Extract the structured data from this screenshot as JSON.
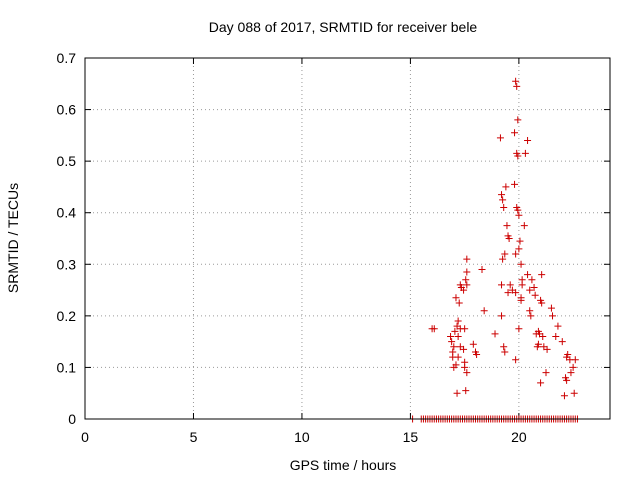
{
  "chart_data": {
    "type": "scatter",
    "title": "Day 088 of 2017, SRMTID for receiver bele",
    "xlabel": "GPS time / hours",
    "ylabel": "SRMTID / TECUs",
    "xlim": [
      0,
      24.2
    ],
    "ylim": [
      0,
      0.7
    ],
    "xticks": [
      0,
      5,
      10,
      15,
      20
    ],
    "xtick_labels": [
      "0",
      "5",
      "10",
      "15",
      "20"
    ],
    "yticks": [
      0,
      0.1,
      0.2,
      0.3,
      0.4,
      0.5,
      0.6,
      0.7
    ],
    "ytick_labels": [
      "0",
      "0.1",
      "0.2",
      "0.3",
      "0.4",
      "0.5",
      "0.6",
      "0.7"
    ],
    "grid": true,
    "marker": "+",
    "color": "#cc0000",
    "points": [
      [
        16.0,
        0.175
      ],
      [
        16.1,
        0.175
      ],
      [
        16.85,
        0.16
      ],
      [
        16.9,
        0.15
      ],
      [
        16.95,
        0.13
      ],
      [
        16.95,
        0.12
      ],
      [
        17.0,
        0.14
      ],
      [
        17.0,
        0.1
      ],
      [
        17.05,
        0.17
      ],
      [
        17.1,
        0.235
      ],
      [
        17.1,
        0.105
      ],
      [
        17.15,
        0.05
      ],
      [
        17.15,
        0.18
      ],
      [
        17.2,
        0.19
      ],
      [
        17.2,
        0.16
      ],
      [
        17.2,
        0.12
      ],
      [
        17.25,
        0.225
      ],
      [
        17.3,
        0.26
      ],
      [
        17.3,
        0.175
      ],
      [
        17.3,
        0.14
      ],
      [
        17.35,
        0.255
      ],
      [
        17.45,
        0.25
      ],
      [
        17.45,
        0.135
      ],
      [
        17.5,
        0.175
      ],
      [
        17.5,
        0.11
      ],
      [
        17.5,
        0.1
      ],
      [
        17.55,
        0.27
      ],
      [
        17.6,
        0.285
      ],
      [
        17.6,
        0.26
      ],
      [
        17.6,
        0.31
      ],
      [
        17.6,
        0.09
      ],
      [
        17.55,
        0.055
      ],
      [
        17.9,
        0.145
      ],
      [
        18.0,
        0.13
      ],
      [
        18.05,
        0.125
      ],
      [
        18.3,
        0.29
      ],
      [
        18.4,
        0.21
      ],
      [
        18.9,
        0.165
      ],
      [
        19.15,
        0.545
      ],
      [
        19.2,
        0.435
      ],
      [
        19.25,
        0.425
      ],
      [
        19.3,
        0.41
      ],
      [
        19.2,
        0.26
      ],
      [
        19.25,
        0.31
      ],
      [
        19.2,
        0.2
      ],
      [
        19.3,
        0.14
      ],
      [
        19.35,
        0.13
      ],
      [
        19.4,
        0.45
      ],
      [
        19.35,
        0.32
      ],
      [
        19.45,
        0.375
      ],
      [
        19.5,
        0.355
      ],
      [
        19.55,
        0.35
      ],
      [
        19.6,
        0.26
      ],
      [
        19.5,
        0.245
      ],
      [
        19.7,
        0.25
      ],
      [
        19.8,
        0.555
      ],
      [
        19.8,
        0.455
      ],
      [
        19.85,
        0.655
      ],
      [
        19.9,
        0.645
      ],
      [
        19.9,
        0.515
      ],
      [
        19.95,
        0.51
      ],
      [
        19.95,
        0.58
      ],
      [
        19.9,
        0.41
      ],
      [
        19.95,
        0.405
      ],
      [
        20.0,
        0.395
      ],
      [
        19.85,
        0.32
      ],
      [
        20.0,
        0.33
      ],
      [
        20.05,
        0.345
      ],
      [
        20.1,
        0.3
      ],
      [
        19.85,
        0.245
      ],
      [
        20.1,
        0.235
      ],
      [
        20.0,
        0.175
      ],
      [
        20.1,
        0.23
      ],
      [
        20.15,
        0.26
      ],
      [
        20.15,
        0.27
      ],
      [
        19.85,
        0.115
      ],
      [
        20.3,
        0.515
      ],
      [
        20.25,
        0.375
      ],
      [
        20.4,
        0.54
      ],
      [
        20.4,
        0.28
      ],
      [
        20.5,
        0.25
      ],
      [
        20.5,
        0.21
      ],
      [
        20.55,
        0.2
      ],
      [
        20.6,
        0.27
      ],
      [
        20.7,
        0.255
      ],
      [
        20.75,
        0.24
      ],
      [
        20.8,
        0.165
      ],
      [
        20.85,
        0.14
      ],
      [
        20.9,
        0.17
      ],
      [
        20.9,
        0.145
      ],
      [
        20.95,
        0.165
      ],
      [
        21.0,
        0.23
      ],
      [
        21.0,
        0.07
      ],
      [
        21.05,
        0.28
      ],
      [
        21.05,
        0.225
      ],
      [
        21.1,
        0.16
      ],
      [
        21.15,
        0.14
      ],
      [
        21.25,
        0.09
      ],
      [
        21.3,
        0.135
      ],
      [
        21.5,
        0.215
      ],
      [
        21.55,
        0.2
      ],
      [
        21.8,
        0.18
      ],
      [
        21.7,
        0.16
      ],
      [
        22.0,
        0.15
      ],
      [
        22.1,
        0.045
      ],
      [
        22.15,
        0.08
      ],
      [
        22.2,
        0.12
      ],
      [
        22.25,
        0.125
      ],
      [
        22.35,
        0.115
      ],
      [
        22.4,
        0.09
      ],
      [
        22.5,
        0.1
      ],
      [
        22.6,
        0.115
      ],
      [
        22.55,
        0.05
      ],
      [
        22.2,
        0.075
      ]
    ],
    "zero_band": {
      "x_start": 15.5,
      "x_end": 22.7,
      "y": 0
    },
    "zero_extra": [
      15.1
    ]
  }
}
